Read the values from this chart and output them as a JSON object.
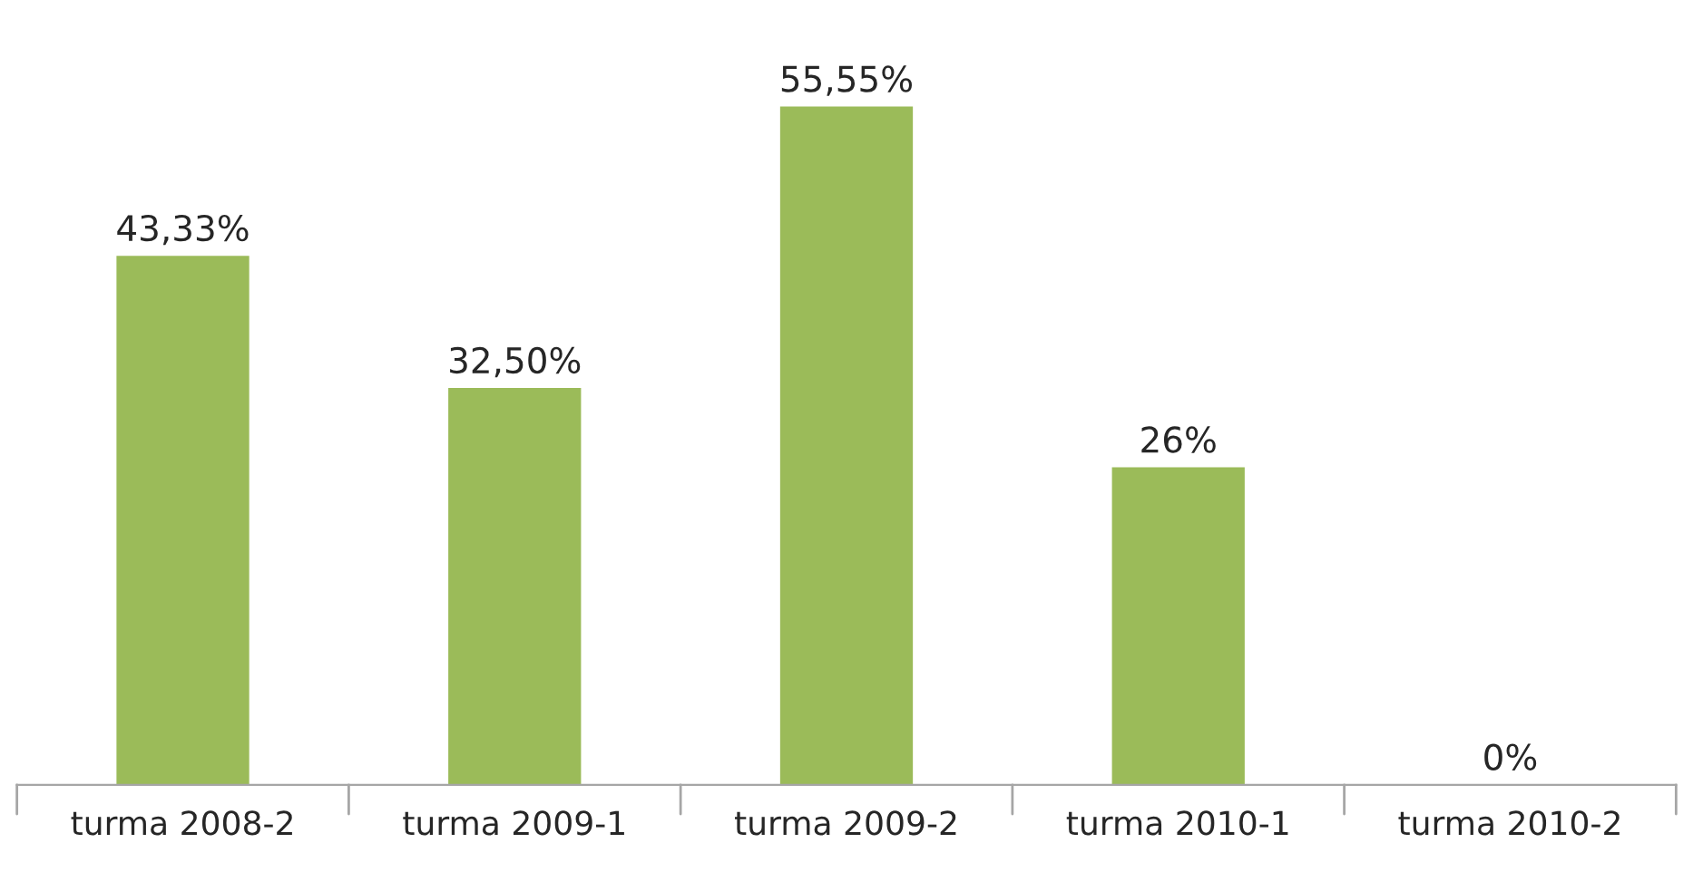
{
  "chart_data": {
    "type": "bar",
    "categories": [
      "turma 2008-2",
      "turma 2009-1",
      "turma 2009-2",
      "turma 2010-1",
      "turma 2010-2"
    ],
    "values": [
      43.33,
      32.5,
      55.55,
      26,
      0
    ],
    "value_labels": [
      "43,33%",
      "32,50%",
      "55,55%",
      "26%",
      "0%"
    ],
    "color": "#9bbb59",
    "grid": false
  }
}
